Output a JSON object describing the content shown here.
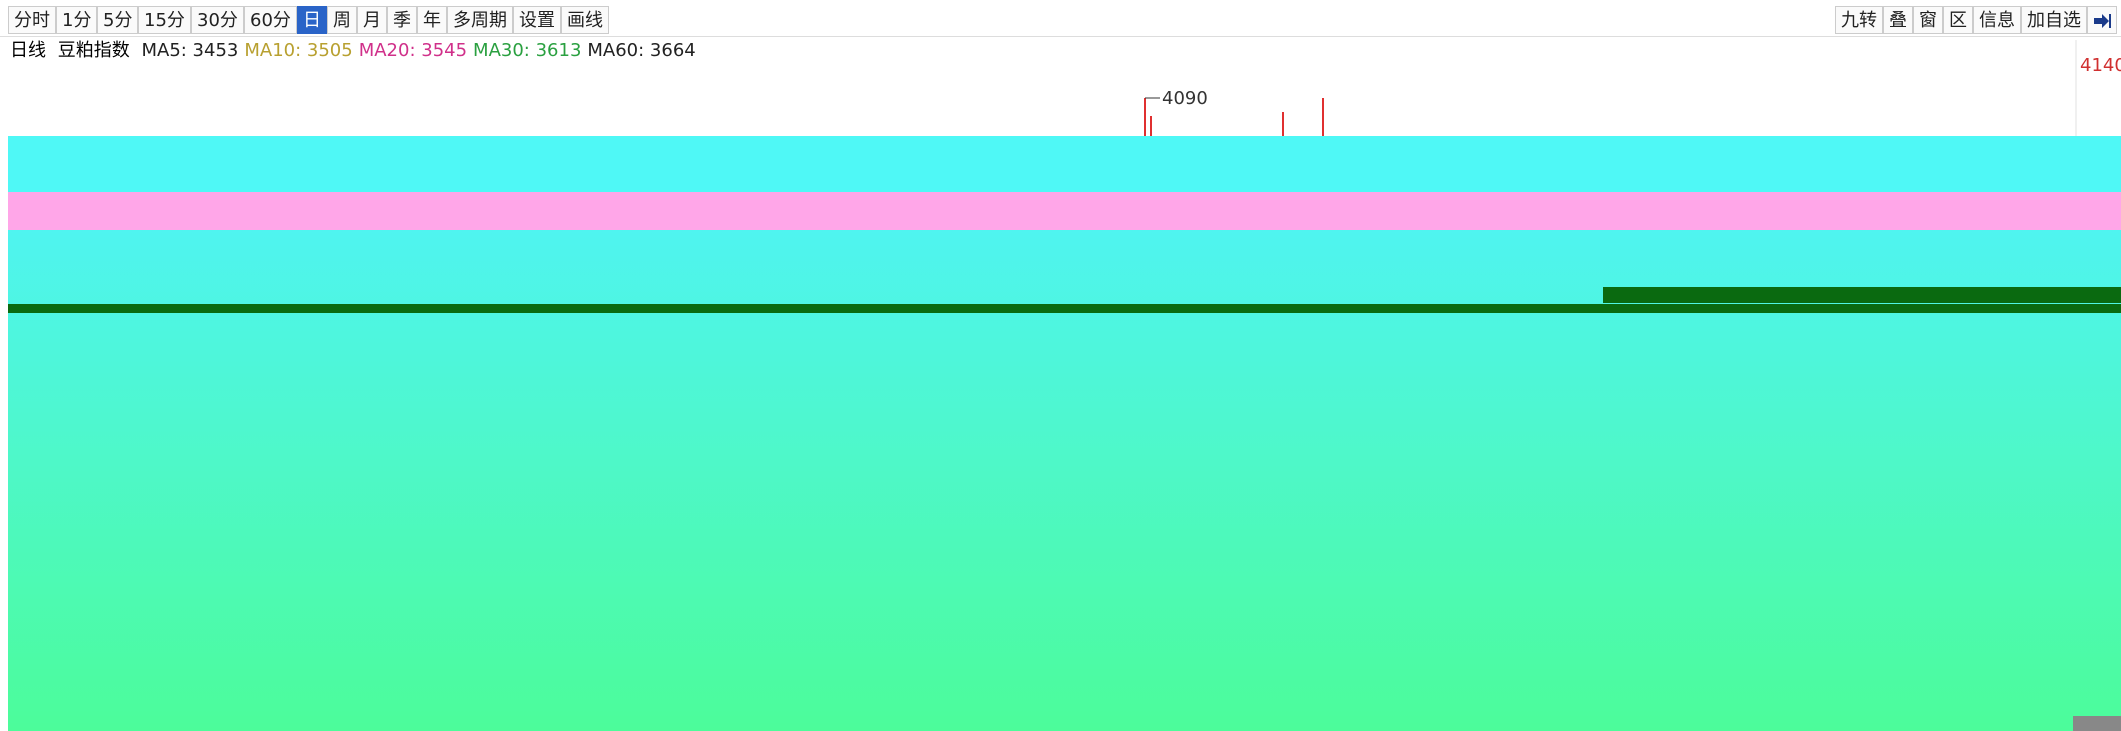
{
  "toolbar": {
    "left_buttons": [
      "分时",
      "1分",
      "5分",
      "15分",
      "30分",
      "60分",
      "日",
      "周",
      "月",
      "季",
      "年",
      "多周期",
      "设置",
      "画线"
    ],
    "active": "日",
    "right_buttons": [
      "九转",
      "叠",
      "窗",
      "区",
      "信息",
      "加自选"
    ]
  },
  "info_bar": {
    "period": "日线",
    "symbol": "豆粕指数",
    "ma": [
      {
        "text": "MA5: 3453",
        "color": "#222222"
      },
      {
        "text": "MA10: 3505",
        "color": "#b8a030"
      },
      {
        "text": "MA20: 3545",
        "color": "#d0308a"
      },
      {
        "text": "MA30: 3613",
        "color": "#2aa040"
      },
      {
        "text": "MA60: 3664",
        "color": "#222222"
      }
    ]
  },
  "price_axis": {
    "top_label": 4140
  },
  "annotations": {
    "high": 4090
  }
}
